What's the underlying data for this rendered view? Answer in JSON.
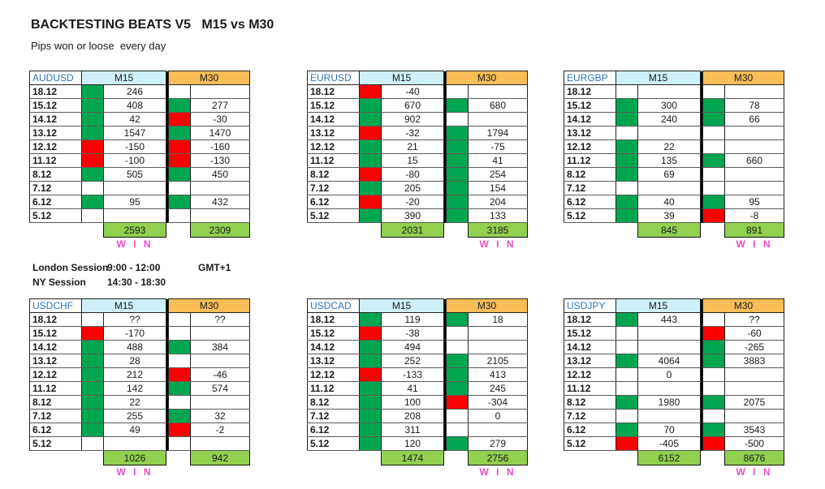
{
  "title": "BACKTESTING BEATS V5   M15 vs M30",
  "subtitle": "Pips won or loose  every day",
  "sessions": {
    "rows": [
      {
        "label": "London Session",
        "time": "9:00 - 12:00",
        "note": "GMT+1"
      },
      {
        "label": "NY Session",
        "time": "14:30 - 18:30",
        "note": ""
      }
    ]
  },
  "columns": {
    "m15": "M15",
    "m30": "M30"
  },
  "win_label": "W I N",
  "dates": [
    "18.12",
    "15.12",
    "14.12",
    "13.12",
    "12.12",
    "11.12",
    "8.12",
    "7.12",
    "6.12",
    "5.12"
  ],
  "tables": [
    {
      "pair": "AUDUSD",
      "rows": [
        [
          "g",
          "246",
          "w",
          ""
        ],
        [
          "g",
          "408",
          "g",
          "277"
        ],
        [
          "g",
          "42",
          "r",
          "-30"
        ],
        [
          "g",
          "1547",
          "g",
          "1470"
        ],
        [
          "r",
          "-150",
          "r",
          "-160"
        ],
        [
          "r",
          "-100",
          "r",
          "-130"
        ],
        [
          "g",
          "505",
          "g",
          "450"
        ],
        [
          "w",
          "",
          "w",
          ""
        ],
        [
          "g",
          "95",
          "g",
          "432"
        ],
        [
          "w",
          "",
          "w",
          ""
        ]
      ],
      "totals": {
        "m15": "2593",
        "m30": "2309"
      },
      "winner": "m15"
    },
    {
      "pair": "EURUSD",
      "rows": [
        [
          "r",
          "-40",
          "w",
          ""
        ],
        [
          "g",
          "670",
          "g",
          "680"
        ],
        [
          "g",
          "902",
          "w",
          ""
        ],
        [
          "r",
          "-32",
          "g",
          "1794"
        ],
        [
          "g",
          "21",
          "g",
          "-75"
        ],
        [
          "g",
          "15",
          "g",
          "41"
        ],
        [
          "r",
          "-80",
          "g",
          "254"
        ],
        [
          "g",
          "205",
          "g",
          "154"
        ],
        [
          "r",
          "-20",
          "g",
          "204"
        ],
        [
          "g",
          "390",
          "g",
          "133"
        ]
      ],
      "totals": {
        "m15": "2031",
        "m30": "3185"
      },
      "winner": "m30"
    },
    {
      "pair": "EURGBP",
      "rows": [
        [
          "w",
          "",
          "w",
          ""
        ],
        [
          "g",
          "300",
          "g",
          "78"
        ],
        [
          "g",
          "240",
          "g",
          "66"
        ],
        [
          "w",
          "",
          "w",
          ""
        ],
        [
          "g",
          "22",
          "w",
          ""
        ],
        [
          "g",
          "135",
          "g",
          "660"
        ],
        [
          "g",
          "69",
          "w",
          ""
        ],
        [
          "w",
          "",
          "w",
          ""
        ],
        [
          "g",
          "40",
          "g",
          "95"
        ],
        [
          "g",
          "39",
          "r",
          "-8"
        ]
      ],
      "totals": {
        "m15": "845",
        "m30": "891"
      },
      "winner": "m30"
    },
    {
      "pair": "USDCHF",
      "rows": [
        [
          "w",
          "??",
          "w",
          "??"
        ],
        [
          "r",
          "-170",
          "w",
          ""
        ],
        [
          "g",
          "488",
          "g",
          "384"
        ],
        [
          "g",
          "28",
          "w",
          ""
        ],
        [
          "g",
          "212",
          "r",
          "-46"
        ],
        [
          "g",
          "142",
          "g",
          "574"
        ],
        [
          "g",
          "22",
          "w",
          ""
        ],
        [
          "g",
          "255",
          "g",
          "32"
        ],
        [
          "g",
          "49",
          "r",
          "-2"
        ],
        [
          "w",
          "",
          "w",
          ""
        ]
      ],
      "totals": {
        "m15": "1026",
        "m30": "942"
      },
      "winner": "m15"
    },
    {
      "pair": "USDCAD",
      "rows": [
        [
          "g",
          "119",
          "g",
          "18"
        ],
        [
          "r",
          "-38",
          "w",
          ""
        ],
        [
          "g",
          "494",
          "w",
          ""
        ],
        [
          "g",
          "252",
          "g",
          "2105"
        ],
        [
          "r",
          "-133",
          "g",
          "413"
        ],
        [
          "g",
          "41",
          "g",
          "245"
        ],
        [
          "g",
          "100",
          "r",
          "-304"
        ],
        [
          "g",
          "208",
          "w",
          "0"
        ],
        [
          "g",
          "311",
          "w",
          ""
        ],
        [
          "g",
          "120",
          "g",
          "279"
        ]
      ],
      "totals": {
        "m15": "1474",
        "m30": "2756"
      },
      "winner": "m30"
    },
    {
      "pair": "USDJPY",
      "rows": [
        [
          "g",
          "443",
          "w",
          "??"
        ],
        [
          "w",
          "",
          "r",
          "-60"
        ],
        [
          "w",
          "",
          "g",
          "-265"
        ],
        [
          "g",
          "4064",
          "g",
          "3883"
        ],
        [
          "w",
          "0",
          "w",
          ""
        ],
        [
          "w",
          "",
          "w",
          ""
        ],
        [
          "g",
          "1980",
          "g",
          "2075"
        ],
        [
          "w",
          "",
          "w",
          ""
        ],
        [
          "g",
          "70",
          "g",
          "3543"
        ],
        [
          "r",
          "-405",
          "r",
          "-500"
        ]
      ],
      "totals": {
        "m15": "6152",
        "m30": "8676"
      },
      "winner": "m30"
    }
  ],
  "colors": {
    "green": "#00A64F",
    "red": "#FB0000",
    "header_cyan": "#CEF0F8",
    "header_orange": "#FABD57",
    "total_lime": "#92D050",
    "win_magenta": "#E84CC0",
    "pair_blue": "#2E74B5"
  }
}
